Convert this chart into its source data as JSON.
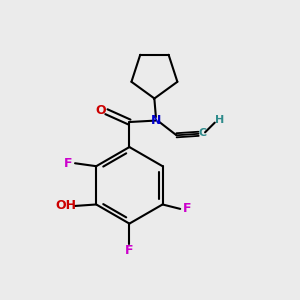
{
  "bg_color": "#ebebeb",
  "atom_colors": {
    "C": "#000000",
    "N": "#0000cc",
    "O": "#cc0000",
    "F": "#cc00cc",
    "OH": "#cc0000",
    "H_alkyne": "#2e8b8b"
  },
  "bond_color": "#000000",
  "bond_width": 1.5
}
